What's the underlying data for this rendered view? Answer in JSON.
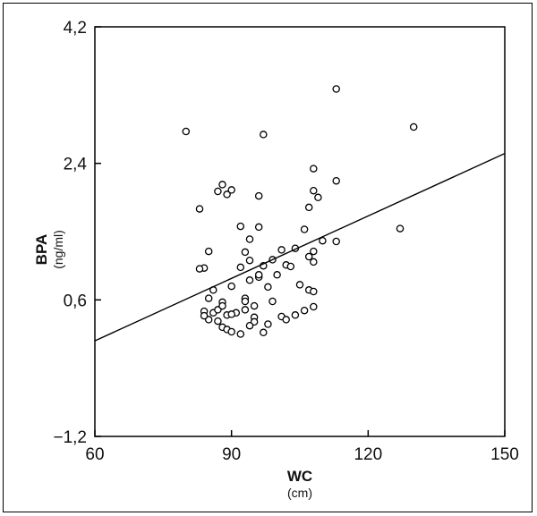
{
  "chart_data": {
    "type": "scatter",
    "xlabel": "WC",
    "xunit": "(cm)",
    "ylabel": "BPA",
    "yunit": "(ng/ml)",
    "xlim": [
      60,
      150
    ],
    "ylim": [
      -1.2,
      4.2
    ],
    "x_ticks": [
      "60",
      "90",
      "120",
      "150"
    ],
    "y_ticks": [
      "4,2",
      "2,4",
      "0,6",
      "−1,2"
    ],
    "x_tick_values": [
      60,
      90,
      120,
      150
    ],
    "y_tick_values": [
      4.2,
      2.4,
      0.6,
      -1.2
    ],
    "grid": false,
    "legend": "none",
    "marker": "open-circle",
    "regression_line": {
      "x": [
        60,
        150
      ],
      "y": [
        0.06,
        2.53
      ]
    },
    "points": [
      [
        80,
        2.82
      ],
      [
        97,
        2.78
      ],
      [
        113,
        3.38
      ],
      [
        130,
        2.88
      ],
      [
        108,
        2.33
      ],
      [
        113,
        2.17
      ],
      [
        88,
        2.12
      ],
      [
        87,
        2.03
      ],
      [
        89,
        1.99
      ],
      [
        90,
        2.05
      ],
      [
        96,
        1.97
      ],
      [
        108,
        2.04
      ],
      [
        109,
        1.95
      ],
      [
        107,
        1.82
      ],
      [
        83,
        1.8
      ],
      [
        92,
        1.57
      ],
      [
        96,
        1.56
      ],
      [
        106,
        1.53
      ],
      [
        127,
        1.54
      ],
      [
        94,
        1.4
      ],
      [
        110,
        1.38
      ],
      [
        113,
        1.37
      ],
      [
        85,
        1.24
      ],
      [
        93,
        1.23
      ],
      [
        101,
        1.26
      ],
      [
        104,
        1.28
      ],
      [
        107,
        1.17
      ],
      [
        108,
        1.24
      ],
      [
        84,
        1.02
      ],
      [
        83,
        1.01
      ],
      [
        94,
        1.12
      ],
      [
        99,
        1.13
      ],
      [
        97,
        1.05
      ],
      [
        92,
        1.03
      ],
      [
        102,
        1.06
      ],
      [
        103,
        1.04
      ],
      [
        108,
        1.1
      ],
      [
        96,
        0.9
      ],
      [
        96,
        0.93
      ],
      [
        100,
        0.93
      ],
      [
        94,
        0.86
      ],
      [
        90,
        0.78
      ],
      [
        86,
        0.73
      ],
      [
        98,
        0.77
      ],
      [
        105,
        0.8
      ],
      [
        107,
        0.73
      ],
      [
        108,
        0.71
      ],
      [
        99,
        0.58
      ],
      [
        85,
        0.62
      ],
      [
        88,
        0.57
      ],
      [
        93,
        0.62
      ],
      [
        93,
        0.58
      ],
      [
        95,
        0.52
      ],
      [
        84,
        0.45
      ],
      [
        86,
        0.43
      ],
      [
        87,
        0.47
      ],
      [
        88,
        0.52
      ],
      [
        89,
        0.4
      ],
      [
        91,
        0.43
      ],
      [
        90,
        0.41
      ],
      [
        93,
        0.47
      ],
      [
        95,
        0.37
      ],
      [
        95,
        0.31
      ],
      [
        94,
        0.26
      ],
      [
        101,
        0.38
      ],
      [
        104,
        0.4
      ],
      [
        106,
        0.46
      ],
      [
        108,
        0.51
      ],
      [
        85,
        0.34
      ],
      [
        87,
        0.32
      ],
      [
        88,
        0.24
      ],
      [
        89,
        0.21
      ],
      [
        90,
        0.18
      ],
      [
        92,
        0.15
      ],
      [
        97,
        0.17
      ],
      [
        98,
        0.28
      ],
      [
        102,
        0.34
      ],
      [
        84,
        0.39
      ]
    ]
  }
}
